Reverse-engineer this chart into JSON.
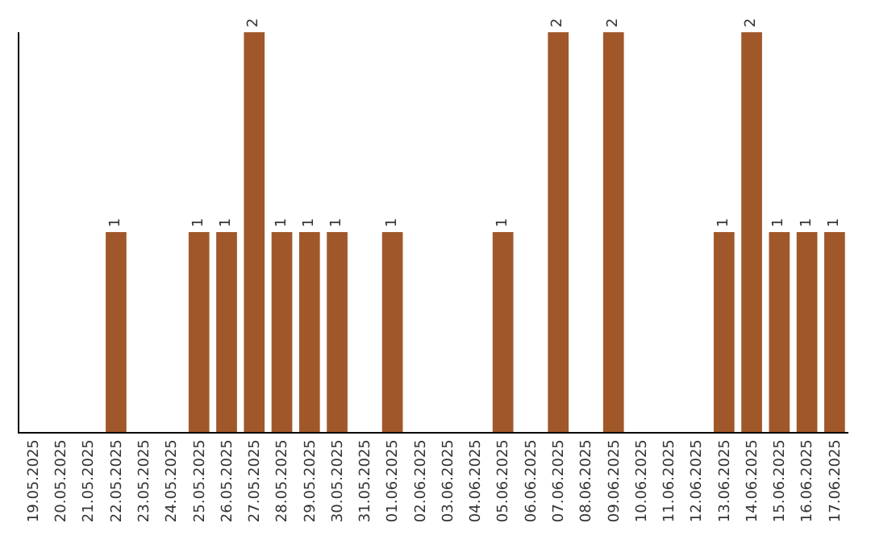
{
  "chart_data": {
    "type": "bar",
    "categories": [
      "19.05.2025",
      "20.05.2025",
      "21.05.2025",
      "22.05.2025",
      "23.05.2025",
      "24.05.2025",
      "25.05.2025",
      "26.05.2025",
      "27.05.2025",
      "28.05.2025",
      "29.05.2025",
      "30.05.2025",
      "31.05.2025",
      "01.06.2025",
      "02.06.2025",
      "03.06.2025",
      "04.06.2025",
      "05.06.2025",
      "06.06.2025",
      "07.06.2025",
      "08.06.2025",
      "09.06.2025",
      "10.06.2025",
      "11.06.2025",
      "12.06.2025",
      "13.06.2025",
      "14.06.2025",
      "15.06.2025",
      "16.06.2025",
      "17.06.2025"
    ],
    "values": [
      0,
      0,
      0,
      1,
      0,
      0,
      1,
      1,
      2,
      1,
      1,
      1,
      0,
      1,
      0,
      0,
      0,
      1,
      0,
      2,
      0,
      2,
      0,
      0,
      0,
      1,
      2,
      1,
      1,
      1
    ],
    "value_labels": [
      null,
      null,
      null,
      "1",
      null,
      null,
      "1",
      "1",
      "2",
      "1",
      "1",
      "1",
      null,
      "1",
      null,
      null,
      null,
      "1",
      null,
      "2",
      null,
      "2",
      null,
      null,
      null,
      "1",
      "2",
      "1",
      "1",
      "1"
    ],
    "color": "#a0582a",
    "ylim": [
      0,
      2
    ],
    "tick_labels": "x",
    "legend": false
  }
}
